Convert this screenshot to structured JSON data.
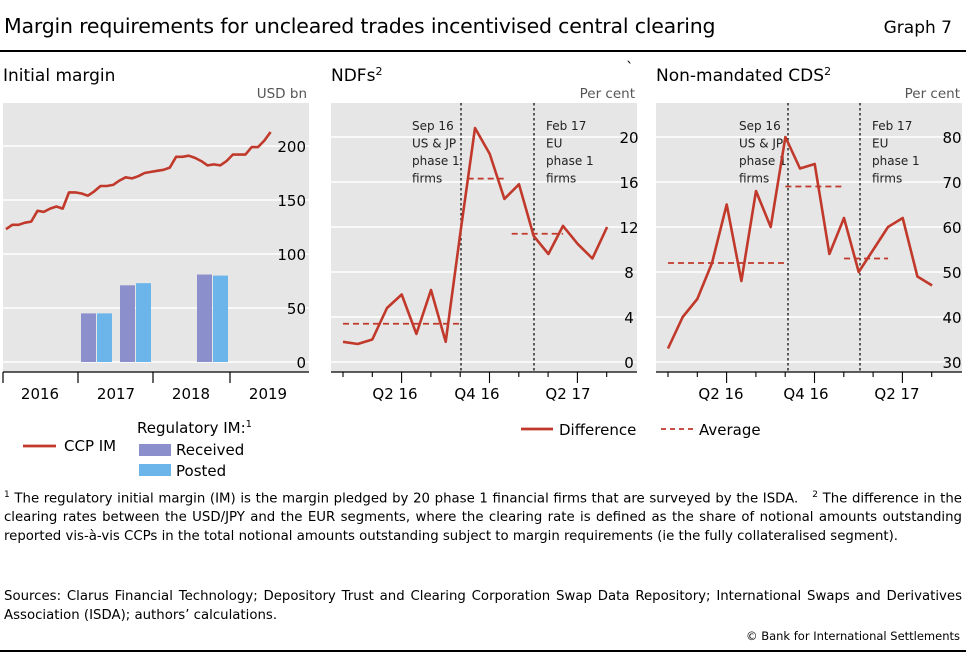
{
  "header": {
    "title": "Margin requirements for uncleared trades incentivised central clearing",
    "graph_number": "Graph 7"
  },
  "chart_data": [
    {
      "type": "bar",
      "title": "Initial margin",
      "unit": "USD bn",
      "ylim": [
        0,
        230
      ],
      "yticks": [
        0,
        50,
        100,
        150,
        200
      ],
      "xticks": [
        "2016",
        "2017",
        "2018",
        "2019"
      ],
      "series": [
        {
          "name": "CCP IM",
          "kind": "line",
          "color": "#c0392b",
          "x": [
            0,
            0.25,
            0.5,
            0.75,
            1,
            1.25,
            1.5,
            1.75,
            2,
            2.25,
            2.5,
            2.75,
            3,
            3.25,
            3.5,
            3.75,
            4,
            4.25,
            4.5,
            4.75,
            5,
            5.25,
            5.5,
            5.75,
            6,
            6.25,
            6.5,
            6.75,
            7,
            7.25,
            7.5,
            7.75,
            8,
            8.25,
            8.5,
            8.75,
            9,
            9.25,
            9.5,
            9.75,
            10,
            10.25,
            10.5
          ],
          "values": [
            123,
            127,
            127,
            129,
            130,
            140,
            139,
            142,
            144,
            142,
            157,
            157,
            156,
            154,
            158,
            163,
            163,
            164,
            168,
            171,
            170,
            172,
            175,
            176,
            177,
            178,
            180,
            190,
            190,
            191,
            189,
            186,
            182,
            183,
            182,
            186,
            192,
            192,
            192,
            199,
            199,
            205,
            213
          ]
        },
        {
          "name": "Received",
          "kind": "bar",
          "color": "#8b90cc",
          "values": [
            45,
            71,
            81
          ]
        },
        {
          "name": "Posted",
          "kind": "bar",
          "color": "#6bb5ea",
          "values": [
            45,
            73,
            80
          ]
        }
      ],
      "legend": {
        "line_label": "CCP IM",
        "group_label": "Regulatory IM:",
        "group_sup": "1",
        "received": "Received",
        "posted": "Posted"
      }
    },
    {
      "type": "line",
      "title": "NDFs",
      "title_sup": "2",
      "unit": "Per cent",
      "ylim": [
        0,
        22
      ],
      "yticks": [
        0,
        4,
        8,
        12,
        16,
        20
      ],
      "xticks": [
        "Q2 16",
        "Q4 16",
        "Q2 17"
      ],
      "series": [
        {
          "name": "Difference",
          "color": "#c0392b",
          "values": [
            1.8,
            1.6,
            2.0,
            4.8,
            6.0,
            2.5,
            6.4,
            1.8,
            11.5,
            20.8,
            18.5,
            14.5,
            15.8,
            11.2,
            9.6,
            12.1,
            10.5,
            9.2,
            12.0
          ]
        },
        {
          "name": "Average",
          "color": "#c0392b",
          "dashed": true,
          "segments": [
            [
              0,
              8,
              3.4
            ],
            [
              8.5,
              11,
              16.3
            ],
            [
              11.5,
              15,
              11.4
            ]
          ]
        }
      ],
      "annotations": [
        {
          "at": 8.5,
          "lines": [
            "Sep 16",
            "US & JP",
            "phase 1",
            "firms"
          ]
        },
        {
          "at": 11.5,
          "lines": [
            "Feb 17",
            "EU",
            "phase 1",
            "firms"
          ]
        }
      ]
    },
    {
      "type": "line",
      "title": "Non-mandated CDS",
      "title_sup": "2",
      "unit": "Per cent",
      "ylim": [
        29,
        84
      ],
      "yticks": [
        30,
        40,
        50,
        60,
        70,
        80
      ],
      "xticks": [
        "Q2 16",
        "Q4 16",
        "Q2 17"
      ],
      "series": [
        {
          "name": "Difference",
          "values": [
            33,
            40,
            44,
            52,
            65,
            48,
            68,
            60,
            80,
            73,
            74,
            54,
            62,
            50,
            55,
            60,
            62,
            49,
            47
          ]
        },
        {
          "name": "Average",
          "dashed": true,
          "segments": [
            [
              0,
              8,
              52
            ],
            [
              8,
              12,
              69
            ],
            [
              12,
              15,
              53
            ]
          ]
        }
      ],
      "annotations": [
        {
          "at": 8,
          "lines": [
            "Sep 16",
            "US & JP",
            "phase 1",
            "firms"
          ]
        },
        {
          "at": 12,
          "lines": [
            "Feb 17",
            "EU",
            "phase 1",
            "firms"
          ]
        }
      ]
    }
  ],
  "legend_right": {
    "difference": "Difference",
    "average": "Average"
  },
  "stray_mark": "`",
  "footnotes": {
    "n1_sup": "1",
    "n1": "The regulatory initial margin (IM) is the margin pledged by 20 phase 1 financial firms that are surveyed by the ISDA.",
    "n2_sup": "2",
    "n2": "The difference in the clearing rates between the USD/JPY and the EUR segments, where the clearing rate is defined as the share of notional amounts outstanding reported vis-à-vis CCPs in the total notional amounts outstanding subject to margin requirements (ie the fully collateralised segment).",
    "sources": "Sources: Clarus Financial Technology; Depository Trust and Clearing Corporation Swap Data Repository; International Swaps and Derivatives Association (ISDA); authors’ calculations.",
    "copyright": "© Bank for International Settlements"
  },
  "colors": {
    "panel_bg": "#e6e6e6",
    "grid": "#ffffff",
    "line": "#c0392b",
    "received": "#8b90cc",
    "posted": "#6bb5ea"
  }
}
